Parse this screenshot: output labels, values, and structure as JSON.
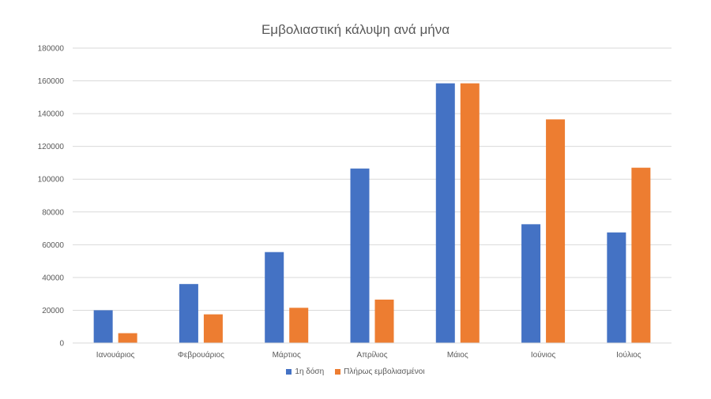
{
  "chart_data": {
    "type": "bar",
    "title": "Εμβολιαστική κάλυψη ανά μήνα",
    "categories": [
      "Ιανουάριος",
      "Φεβρουάριος",
      "Μάρτιος",
      "Απρίλιος",
      "Μάιος",
      "Ιούνιος",
      "Ιούλιος"
    ],
    "series": [
      {
        "name": "1η δόση",
        "color": "#4472C4",
        "values": [
          20000,
          36000,
          55500,
          106500,
          158500,
          72500,
          67500
        ]
      },
      {
        "name": "Πλήρως εμβολιασμένοι",
        "color": "#ED7D31",
        "values": [
          6000,
          17500,
          21500,
          26500,
          158500,
          136500,
          107000
        ]
      }
    ],
    "ylim": [
      0,
      180000
    ],
    "yticks": [
      "0",
      "20000",
      "40000",
      "60000",
      "80000",
      "100000",
      "120000",
      "140000",
      "160000",
      "180000"
    ],
    "grid": true,
    "legend": "bottom"
  }
}
